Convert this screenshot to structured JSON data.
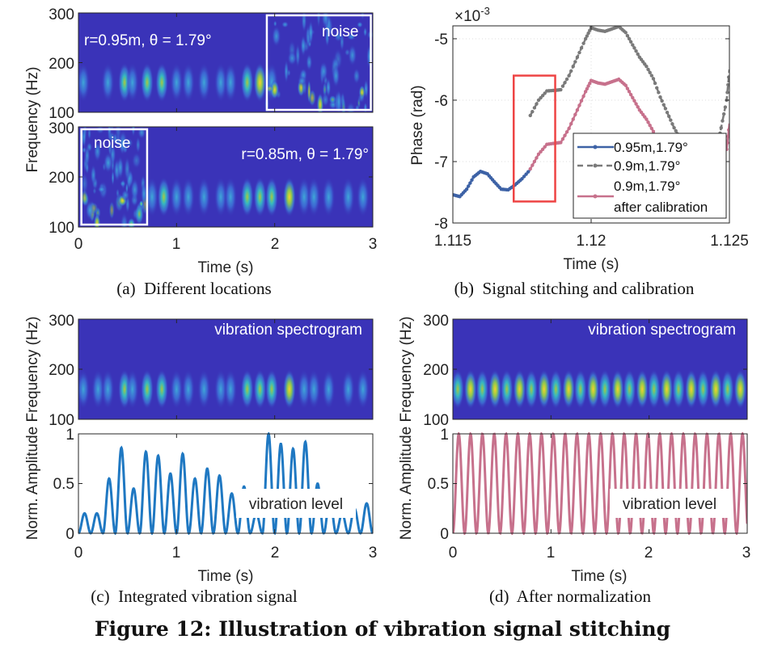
{
  "figure_caption": "Figure 12: Illustration of vibration signal stitching",
  "colors": {
    "spec_bg": "#3a33b8",
    "blue": "#3d62a6",
    "gray": "#7a7a7a",
    "pink": "#c7718c",
    "amp_blue": "#1f78c2",
    "red_box": "#ee4444"
  },
  "chart_data": [
    {
      "id": "a",
      "type": "heatmap",
      "caption": "(a)  Different locations",
      "xlabel": "Time (s)",
      "ylabel": "Frequency (Hz)",
      "xlim": [
        0,
        3
      ],
      "ylim": [
        100,
        300
      ],
      "xticks": [
        "0",
        "1",
        "2",
        "3"
      ],
      "yticks": [
        "300",
        "200",
        "100"
      ],
      "panels": [
        {
          "annotation": "r=0.95m, θ = 1.79°",
          "noise_label": "noise",
          "noise_time": [
            1.92,
            2.98
          ],
          "pulses": [
            [
              0.05,
              1
            ],
            [
              0.3,
              1
            ],
            [
              0.47,
              2
            ],
            [
              0.55,
              1
            ],
            [
              0.7,
              2
            ],
            [
              0.85,
              2
            ],
            [
              1.0,
              1
            ],
            [
              1.12,
              1
            ],
            [
              1.28,
              1
            ],
            [
              1.45,
              1
            ],
            [
              1.55,
              1
            ],
            [
              1.72,
              2
            ],
            [
              1.85,
              3
            ],
            [
              1.97,
              1
            ]
          ]
        },
        {
          "annotation": "r=0.85m, θ = 1.79°",
          "noise_label": "noise",
          "noise_time": [
            0.03,
            0.7
          ],
          "pulses": [
            [
              0.75,
              1
            ],
            [
              0.87,
              2
            ],
            [
              1.0,
              1
            ],
            [
              1.12,
              1
            ],
            [
              1.28,
              1
            ],
            [
              1.45,
              1
            ],
            [
              1.55,
              1
            ],
            [
              1.72,
              2
            ],
            [
              1.85,
              2
            ],
            [
              1.97,
              2
            ],
            [
              2.15,
              3
            ],
            [
              2.3,
              1
            ],
            [
              2.4,
              1
            ],
            [
              2.55,
              1
            ],
            [
              2.75,
              1
            ],
            [
              2.9,
              1
            ]
          ]
        }
      ]
    },
    {
      "id": "b",
      "type": "line",
      "caption": "(b)  Signal stitching and calibration",
      "xlabel": "Time (s)",
      "ylabel": "Phase (rad)",
      "exponent": "×10",
      "exponent_power": "-3",
      "xlim": [
        1.115,
        1.125
      ],
      "ylim": [
        -8,
        -4.79
      ],
      "xticks": [
        1.115,
        1.12,
        1.125
      ],
      "xtick_labels": [
        "1.115",
        "1.12",
        "1.125"
      ],
      "yticks": [
        -5,
        -6,
        -7,
        -8
      ],
      "ytick_labels": [
        "-5",
        "-6",
        "-7",
        "-8"
      ],
      "highlight_box": {
        "x": [
          1.1172,
          1.1187
        ],
        "y": [
          -7.65,
          -5.6
        ]
      },
      "legend": {
        "position": "lower-right",
        "entries": [
          "0.95m,1.79°",
          "0.9m,1.79°",
          "0.9m,1.79°",
          "after calibration"
        ]
      },
      "series": [
        {
          "name": "0.95m,1.79°",
          "style": "solid",
          "x": [
            1.115,
            1.11525,
            1.1155,
            1.11575,
            1.116,
            1.11625,
            1.1165,
            1.11675,
            1.117,
            1.11725,
            1.1175,
            1.1178
          ],
          "y": [
            -7.54,
            -7.57,
            -7.45,
            -7.25,
            -7.16,
            -7.2,
            -7.33,
            -7.45,
            -7.46,
            -7.38,
            -7.28,
            -7.13
          ]
        },
        {
          "name": "0.9m,1.79°",
          "style": "dashed",
          "x": [
            1.1178,
            1.1181,
            1.1184,
            1.1187,
            1.1189,
            1.1192,
            1.1195,
            1.1198,
            1.12,
            1.12025,
            1.1205,
            1.12075,
            1.121,
            1.12125,
            1.1215,
            1.12175,
            1.122,
            1.12225,
            1.1225,
            1.12275,
            1.123,
            1.12325,
            1.1235,
            1.1237,
            1.12455,
            1.1247,
            1.1249,
            1.125
          ],
          "y": [
            -6.25,
            -6.0,
            -5.85,
            -5.84,
            -5.83,
            -5.6,
            -5.3,
            -5.0,
            -4.82,
            -4.86,
            -4.88,
            -4.84,
            -4.8,
            -4.9,
            -5.1,
            -5.3,
            -5.45,
            -5.65,
            -5.95,
            -6.2,
            -6.45,
            -6.65,
            -6.85,
            -7.0,
            -6.8,
            -6.45,
            -6.0,
            -5.5
          ]
        },
        {
          "name": "0.9m,1.79° after calibration",
          "style": "solid",
          "x": [
            1.1178,
            1.1181,
            1.1184,
            1.1187,
            1.1189,
            1.1192,
            1.1195,
            1.1198,
            1.12,
            1.12025,
            1.1205,
            1.12075,
            1.121,
            1.12125,
            1.1215,
            1.12175,
            1.122,
            1.12225,
            1.1225,
            1.1249,
            1.125
          ],
          "y": [
            -7.12,
            -6.88,
            -6.72,
            -6.7,
            -6.69,
            -6.46,
            -6.16,
            -5.86,
            -5.68,
            -5.72,
            -5.74,
            -5.7,
            -5.66,
            -5.76,
            -5.96,
            -6.16,
            -6.31,
            -6.51,
            -6.8,
            -6.8,
            -6.38
          ]
        }
      ]
    },
    {
      "id": "c",
      "type": "line",
      "caption": "(c)  Integrated vibration signal",
      "spectrogram": {
        "annotation": "vibration spectrogram",
        "ylabel": "Frequency (Hz)",
        "yticks": [
          "300",
          "200",
          "100"
        ],
        "ylim": [
          100,
          300
        ],
        "pulses": [
          [
            0.05,
            1
          ],
          [
            0.2,
            1
          ],
          [
            0.3,
            1
          ],
          [
            0.47,
            2
          ],
          [
            0.55,
            1
          ],
          [
            0.7,
            2
          ],
          [
            0.85,
            2
          ],
          [
            1.0,
            1
          ],
          [
            1.12,
            1
          ],
          [
            1.28,
            1
          ],
          [
            1.45,
            1
          ],
          [
            1.55,
            1
          ],
          [
            1.72,
            2
          ],
          [
            1.85,
            2
          ],
          [
            1.97,
            2
          ],
          [
            2.15,
            3
          ],
          [
            2.3,
            1
          ],
          [
            2.4,
            1
          ],
          [
            2.55,
            1
          ],
          [
            2.75,
            1
          ],
          [
            2.9,
            1
          ]
        ]
      },
      "xlabel": "Time (s)",
      "ylabel": "Norm. Amplitude",
      "xlim": [
        0,
        3
      ],
      "ylim": [
        0,
        1
      ],
      "xticks": [
        "0",
        "1",
        "2",
        "3"
      ],
      "yticks": [
        "1",
        "0.5",
        "0"
      ],
      "annotation": "vibration level",
      "frequency_hz": 8,
      "cycle_peaks": [
        0.2,
        0.2,
        0.55,
        0.86,
        0.45,
        0.82,
        0.78,
        0.6,
        0.8,
        0.55,
        0.65,
        0.58,
        0.4,
        0.47,
        0.2,
        1.0,
        0.9,
        0.85,
        0.92,
        0.5,
        0.35,
        0.2,
        0.25,
        0.3
      ]
    },
    {
      "id": "d",
      "type": "line",
      "caption": "(d)  After normalization",
      "spectrogram": {
        "annotation": "vibration spectrogram",
        "ylabel": "Frequency (Hz)",
        "yticks": [
          "300",
          "200",
          "100"
        ],
        "ylim": [
          100,
          300
        ],
        "pulses": [
          [
            0.05,
            2
          ],
          [
            0.18,
            3
          ],
          [
            0.3,
            2
          ],
          [
            0.43,
            3
          ],
          [
            0.55,
            2
          ],
          [
            0.68,
            3
          ],
          [
            0.8,
            2
          ],
          [
            0.93,
            3
          ],
          [
            1.05,
            2
          ],
          [
            1.18,
            3
          ],
          [
            1.3,
            2
          ],
          [
            1.43,
            3
          ],
          [
            1.55,
            2
          ],
          [
            1.68,
            3
          ],
          [
            1.8,
            2
          ],
          [
            1.93,
            3
          ],
          [
            2.05,
            2
          ],
          [
            2.18,
            3
          ],
          [
            2.3,
            2
          ],
          [
            2.43,
            3
          ],
          [
            2.55,
            2
          ],
          [
            2.68,
            3
          ],
          [
            2.8,
            2
          ],
          [
            2.93,
            3
          ]
        ]
      },
      "xlabel": "Time (s)",
      "ylabel": "Norm. Amplitude",
      "xlim": [
        0,
        3
      ],
      "ylim": [
        0,
        1
      ],
      "xticks": [
        "0",
        "1",
        "2",
        "3"
      ],
      "yticks": [
        "1",
        "0.5",
        "0"
      ],
      "annotation": "vibration level",
      "frequency_hz": 8.3,
      "cycle_peaks": [
        1,
        1,
        1,
        1,
        1,
        1,
        1,
        1,
        1,
        1,
        1,
        1,
        1,
        1,
        1,
        1,
        1,
        1,
        1,
        1,
        1,
        1,
        1,
        1,
        1
      ]
    }
  ]
}
